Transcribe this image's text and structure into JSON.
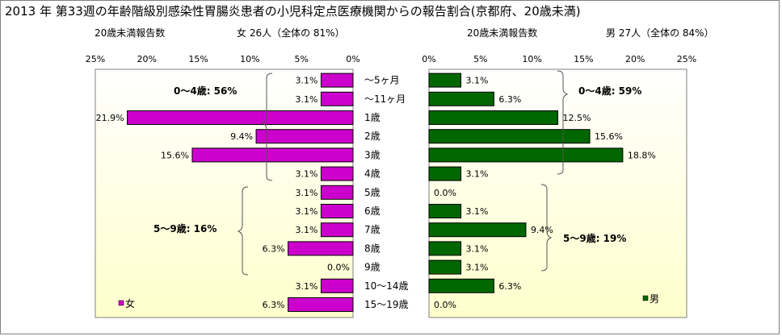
{
  "title": "2013 年 第33週の年齢階級別感染性胃腸炎患者の小児科定点医療機関からの報告割合(京都府、20歳未満)",
  "colors": {
    "female": "#cc00cc",
    "male": "#006600",
    "plot_gradient_top": "#ffffff",
    "plot_gradient_bottom": "#ffffcc"
  },
  "female_panel": {
    "header_left": "20歳未満報告数",
    "header_right": "女 26人（全体の 81%）",
    "legend": "女",
    "bracket_0_4": "0～4歳: 56%",
    "bracket_5_9": "5～9歳: 16%"
  },
  "male_panel": {
    "header_left": "20歳未満報告数",
    "header_right": "男 27人（全体の 84%）",
    "legend": "男",
    "bracket_0_4": "0～4歳: 59%",
    "bracket_5_9": "5～9歳: 19%"
  },
  "chart_data": {
    "type": "bar",
    "orientation": "horizontal",
    "unit": "%",
    "xlim": [
      0,
      25
    ],
    "ticks": [
      "0%",
      "5%",
      "10%",
      "15%",
      "20%",
      "25%"
    ],
    "grid": false,
    "categories": [
      "～5ヶ月",
      "～11ヶ月",
      "1歳",
      "2歳",
      "3歳",
      "4歳",
      "5歳",
      "6歳",
      "7歳",
      "8歳",
      "9歳",
      "10～14歳",
      "15～19歳"
    ],
    "series": [
      {
        "name": "女",
        "values": [
          3.1,
          3.1,
          21.9,
          9.4,
          15.6,
          3.1,
          3.1,
          3.1,
          3.1,
          6.3,
          0.0,
          3.1,
          6.3
        ],
        "labels": [
          "3.1%",
          "3.1%",
          "21.9%",
          "9.4%",
          "15.6%",
          "3.1%",
          "3.1%",
          "3.1%",
          "3.1%",
          "6.3%",
          "0.0%",
          "3.1%",
          "6.3%"
        ]
      },
      {
        "name": "男",
        "values": [
          3.1,
          6.3,
          12.5,
          15.6,
          18.8,
          3.1,
          0.0,
          3.1,
          9.4,
          3.1,
          3.1,
          6.3,
          0.0
        ],
        "labels": [
          "3.1%",
          "6.3%",
          "12.5%",
          "15.6%",
          "18.8%",
          "3.1%",
          "0.0%",
          "3.1%",
          "9.4%",
          "3.1%",
          "3.1%",
          "6.3%",
          "0.0%"
        ]
      }
    ]
  }
}
